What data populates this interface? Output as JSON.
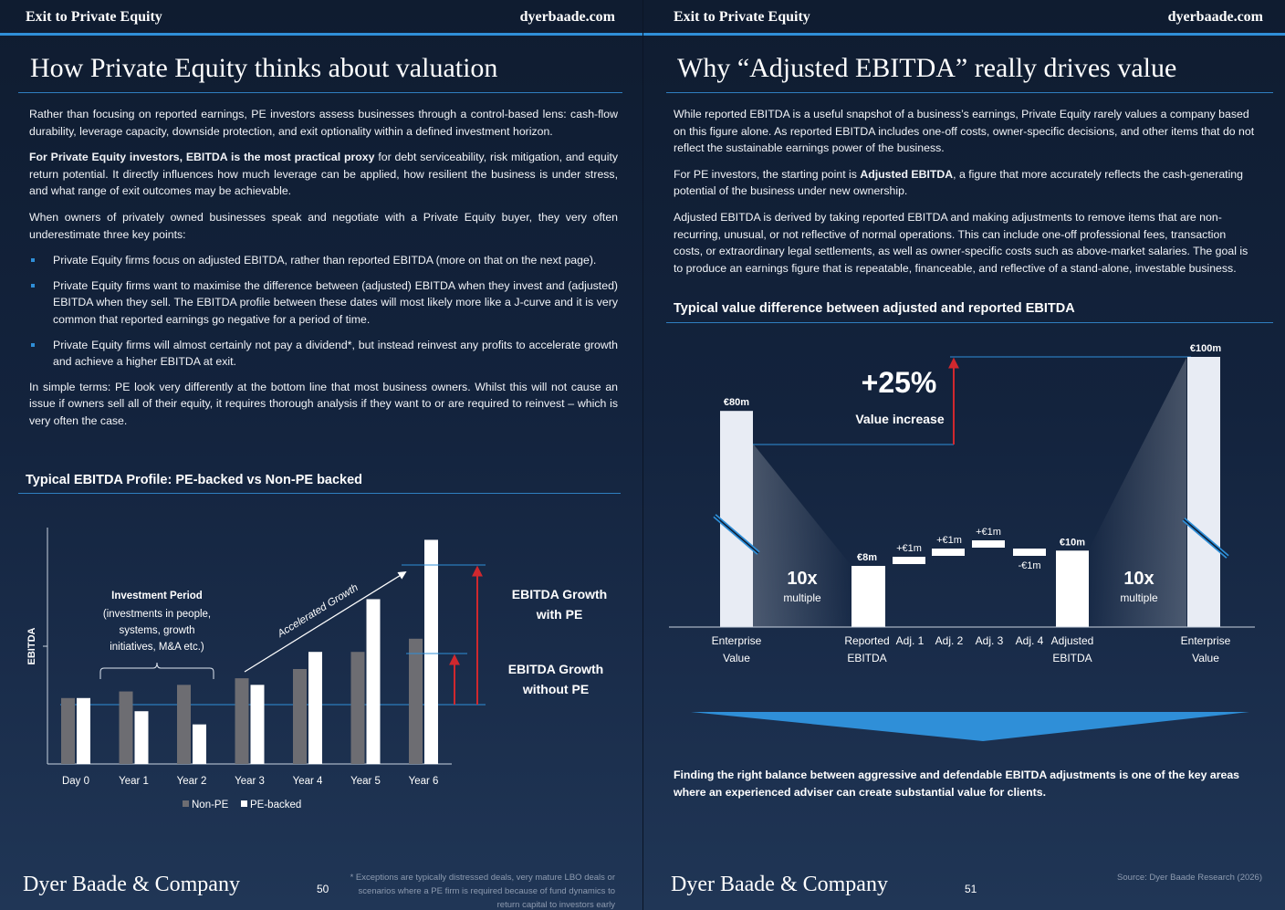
{
  "left": {
    "header_left": "Exit to Private Equity",
    "header_right": "dyerbaade.com",
    "title": "How Private Equity thinks about valuation",
    "p1": "Rather than focusing on reported earnings, PE investors assess businesses through a control-based lens: cash-flow durability, leverage capacity, downside protection, and exit optionality within a defined investment horizon.",
    "p2_bold": "For Private Equity investors, EBITDA is the most practical proxy",
    "p2_rest": " for debt serviceability, risk mitigation, and equity return potential. It directly influences how much leverage can be applied, how resilient the business is under stress, and what range of exit outcomes may be achievable.",
    "p3": "When owners of privately owned businesses speak and negotiate with a Private Equity buyer, they very often underestimate three key points:",
    "bullets": [
      "Private Equity firms focus on adjusted EBITDA, rather than reported EBITDA (more on that on the next page).",
      "Private Equity firms want to maximise the difference between (adjusted) EBITDA when they invest and (adjusted) EBITDA when they sell. The EBITDA profile between these dates will most likely more like a J-curve and it is very common that reported earnings go negative for a period of time.",
      "Private Equity firms will almost certainly not pay a dividend*, but instead reinvest any profits to accelerate growth and achieve a higher EBITDA at exit."
    ],
    "p4": "In simple terms: PE look very differently at the bottom line that most business owners. Whilst this will not cause an issue if owners sell all of their equity, it requires thorough analysis if they want to or are required to reinvest – which is very often the case.",
    "section_title": "Typical EBITDA Profile: PE-backed vs Non-PE backed",
    "brand": "Dyer Baade & Company",
    "page_number": "50",
    "footnote": "* Exceptions are typically distressed deals, very mature LBO deals or scenarios where a PE firm is required because of fund dynamics to return capital to investors early"
  },
  "right": {
    "header_left": "Exit to Private Equity",
    "header_right": "dyerbaade.com",
    "title": "Why “Adjusted EBITDA” really drives value",
    "p1": "While reported EBITDA is a useful snapshot of a business’s earnings, Private Equity rarely values a company based on this figure alone. As reported EBITDA includes one-off costs, owner-specific decisions, and other items that do not reflect the sustainable earnings power of the business.",
    "p2_pre": "For PE investors, the starting point is ",
    "p2_bold": "Adjusted EBITDA",
    "p2_rest": ", a figure that more accurately reflects the cash-generating potential of the business under new ownership.",
    "p3": "Adjusted EBITDA is derived by taking reported EBITDA and making adjustments to remove items that are non-recurring, unusual, or not reflective of normal operations. This can include one-off professional fees, transaction costs, or extraordinary legal settlements, as well as owner-specific costs such as above-market salaries. The goal is to produce an earnings figure that is repeatable, financeable, and reflective of a stand-alone, investable business.",
    "section_title": "Typical value difference between adjusted and reported EBITDA",
    "closing": "Finding the right balance between aggressive and defendable EBITDA adjustments is one of the key areas where an experienced adviser can create substantial value for clients.",
    "brand": "Dyer Baade & Company",
    "page_number": "51",
    "source": "Source: Dyer Baade Research (2026)"
  },
  "chart_data": [
    {
      "type": "bar",
      "title": "Typical EBITDA Profile: PE-backed vs Non-PE backed",
      "ylabel": "EBITDA",
      "categories": [
        "Day 0",
        "Year 1",
        "Year 2",
        "Year 3",
        "Year 4",
        "Year 5",
        "Year 6"
      ],
      "series": [
        {
          "name": "Non-PE",
          "color": "#6d6d72",
          "values": [
            50,
            55,
            60,
            65,
            72,
            85,
            95
          ]
        },
        {
          "name": "PE-backed",
          "color": "#ffffff",
          "values": [
            50,
            40,
            30,
            60,
            85,
            125,
            170
          ]
        }
      ],
      "ylim": [
        0,
        180
      ],
      "annotations": {
        "investment_period_title": "Investment Period",
        "investment_period_lines": [
          "(investments in people,",
          "systems, growth",
          "initiatives, M&A etc.)"
        ],
        "accelerated": "Accelerated Growth",
        "growth_with_pe": [
          "EBITDA Growth",
          "with PE"
        ],
        "growth_without_pe": [
          "EBITDA Growth",
          "without PE"
        ]
      }
    },
    {
      "type": "bar",
      "title": "Typical value difference between adjusted and reported EBITDA",
      "categories": [
        "Enterprise Value",
        "Reported EBITDA",
        "Adj. 1",
        "Adj. 2",
        "Adj. 3",
        "Adj. 4",
        "Adjusted EBITDA",
        "Enterprise Value"
      ],
      "value_labels": [
        "€80m",
        "€8m",
        "+€1m",
        "+€1m",
        "+€1m",
        "-€1m",
        "€10m",
        "€100m"
      ],
      "values": [
        80,
        8,
        1,
        1,
        1,
        -1,
        10,
        100
      ],
      "multiple_value": "10x",
      "multiple_label": "multiple",
      "increase_value": "+25%",
      "increase_label": "Value increase"
    }
  ]
}
